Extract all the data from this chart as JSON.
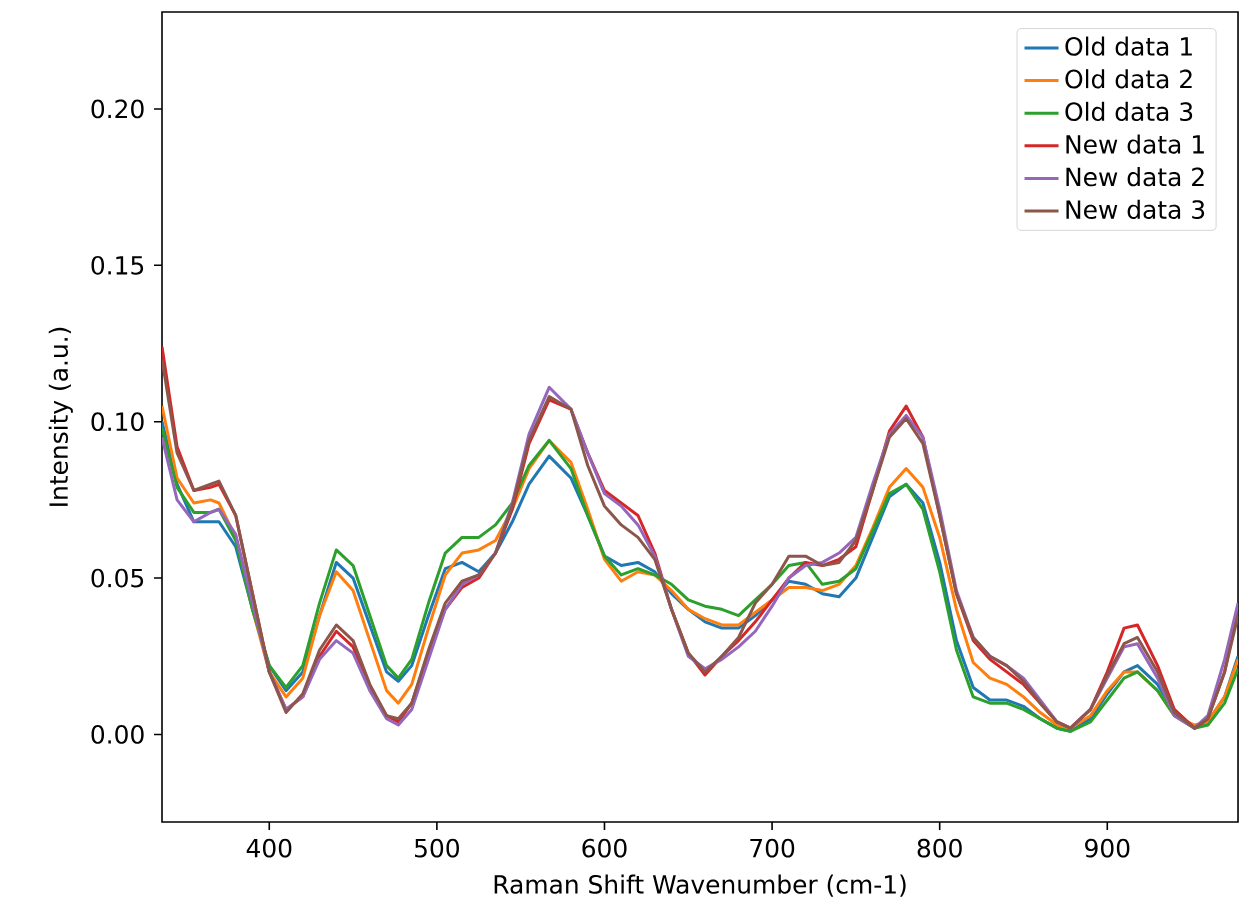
{
  "chart_data": {
    "type": "line",
    "xlabel": "Raman Shift Wavenumber (cm-1)",
    "ylabel": "Intensity (a.u.)",
    "x": [
      336,
      345,
      355,
      365,
      370,
      380,
      390,
      400,
      410,
      420,
      430,
      440,
      450,
      460,
      470,
      477,
      485,
      495,
      505,
      515,
      525,
      535,
      545,
      555,
      567,
      580,
      590,
      600,
      610,
      620,
      630,
      640,
      650,
      660,
      670,
      680,
      690,
      700,
      710,
      720,
      730,
      740,
      750,
      760,
      770,
      780,
      790,
      800,
      810,
      820,
      830,
      840,
      850,
      860,
      870,
      878,
      890,
      900,
      910,
      918,
      930,
      940,
      952,
      960,
      970,
      978
    ],
    "series": [
      {
        "name": "Old data 1",
        "color": "#1f77b4",
        "values": [
          0.1,
          0.08,
          0.068,
          0.068,
          0.068,
          0.06,
          0.04,
          0.022,
          0.014,
          0.02,
          0.038,
          0.055,
          0.05,
          0.035,
          0.02,
          0.017,
          0.022,
          0.038,
          0.053,
          0.055,
          0.052,
          0.058,
          0.068,
          0.08,
          0.089,
          0.082,
          0.07,
          0.057,
          0.054,
          0.055,
          0.052,
          0.045,
          0.04,
          0.036,
          0.034,
          0.034,
          0.038,
          0.043,
          0.049,
          0.048,
          0.045,
          0.044,
          0.05,
          0.063,
          0.076,
          0.08,
          0.074,
          0.055,
          0.03,
          0.015,
          0.011,
          0.011,
          0.009,
          0.005,
          0.002,
          0.001,
          0.005,
          0.013,
          0.02,
          0.022,
          0.016,
          0.007,
          0.002,
          0.004,
          0.012,
          0.025
        ]
      },
      {
        "name": "Old data 2",
        "color": "#ff7f0e",
        "values": [
          0.105,
          0.082,
          0.074,
          0.075,
          0.074,
          0.063,
          0.04,
          0.02,
          0.012,
          0.018,
          0.038,
          0.052,
          0.046,
          0.03,
          0.014,
          0.01,
          0.016,
          0.034,
          0.051,
          0.058,
          0.059,
          0.062,
          0.072,
          0.085,
          0.094,
          0.087,
          0.072,
          0.056,
          0.049,
          0.052,
          0.051,
          0.046,
          0.04,
          0.037,
          0.035,
          0.035,
          0.039,
          0.043,
          0.047,
          0.047,
          0.046,
          0.048,
          0.054,
          0.066,
          0.079,
          0.085,
          0.079,
          0.063,
          0.04,
          0.023,
          0.018,
          0.016,
          0.012,
          0.007,
          0.003,
          0.002,
          0.006,
          0.014,
          0.02,
          0.02,
          0.014,
          0.006,
          0.003,
          0.004,
          0.012,
          0.024
        ]
      },
      {
        "name": "Old data 3",
        "color": "#2ca02c",
        "values": [
          0.098,
          0.079,
          0.071,
          0.071,
          0.072,
          0.062,
          0.04,
          0.022,
          0.015,
          0.022,
          0.042,
          0.059,
          0.054,
          0.038,
          0.022,
          0.018,
          0.024,
          0.042,
          0.058,
          0.063,
          0.063,
          0.067,
          0.074,
          0.086,
          0.094,
          0.085,
          0.07,
          0.057,
          0.051,
          0.053,
          0.051,
          0.048,
          0.043,
          0.041,
          0.04,
          0.038,
          0.043,
          0.048,
          0.054,
          0.055,
          0.048,
          0.049,
          0.053,
          0.065,
          0.077,
          0.08,
          0.072,
          0.052,
          0.027,
          0.012,
          0.01,
          0.01,
          0.008,
          0.005,
          0.002,
          0.001,
          0.004,
          0.011,
          0.018,
          0.02,
          0.014,
          0.006,
          0.002,
          0.003,
          0.01,
          0.021
        ]
      },
      {
        "name": "New data 1",
        "color": "#d62728",
        "values": [
          0.124,
          0.092,
          0.078,
          0.079,
          0.08,
          0.07,
          0.045,
          0.02,
          0.008,
          0.012,
          0.025,
          0.033,
          0.028,
          0.015,
          0.006,
          0.004,
          0.01,
          0.026,
          0.04,
          0.047,
          0.05,
          0.058,
          0.072,
          0.093,
          0.107,
          0.104,
          0.09,
          0.078,
          0.074,
          0.07,
          0.058,
          0.04,
          0.026,
          0.019,
          0.025,
          0.03,
          0.036,
          0.043,
          0.05,
          0.055,
          0.054,
          0.056,
          0.06,
          0.078,
          0.097,
          0.105,
          0.095,
          0.07,
          0.045,
          0.03,
          0.024,
          0.02,
          0.016,
          0.01,
          0.004,
          0.002,
          0.008,
          0.02,
          0.034,
          0.035,
          0.022,
          0.008,
          0.002,
          0.005,
          0.02,
          0.04
        ]
      },
      {
        "name": "New data 2",
        "color": "#9467bd",
        "values": [
          0.095,
          0.075,
          0.068,
          0.071,
          0.072,
          0.064,
          0.042,
          0.02,
          0.008,
          0.012,
          0.024,
          0.03,
          0.026,
          0.014,
          0.005,
          0.003,
          0.008,
          0.024,
          0.04,
          0.048,
          0.051,
          0.058,
          0.074,
          0.096,
          0.111,
          0.104,
          0.09,
          0.077,
          0.073,
          0.067,
          0.057,
          0.04,
          0.025,
          0.021,
          0.024,
          0.028,
          0.033,
          0.041,
          0.05,
          0.054,
          0.055,
          0.058,
          0.063,
          0.08,
          0.096,
          0.102,
          0.095,
          0.072,
          0.046,
          0.031,
          0.025,
          0.022,
          0.018,
          0.011,
          0.004,
          0.002,
          0.008,
          0.018,
          0.028,
          0.029,
          0.018,
          0.006,
          0.002,
          0.006,
          0.024,
          0.042
        ]
      },
      {
        "name": "New data 3",
        "color": "#8c564b",
        "values": [
          0.12,
          0.09,
          0.078,
          0.08,
          0.081,
          0.07,
          0.045,
          0.02,
          0.007,
          0.013,
          0.027,
          0.035,
          0.03,
          0.016,
          0.006,
          0.005,
          0.01,
          0.027,
          0.042,
          0.049,
          0.051,
          0.058,
          0.073,
          0.094,
          0.108,
          0.104,
          0.086,
          0.073,
          0.067,
          0.063,
          0.056,
          0.04,
          0.026,
          0.02,
          0.025,
          0.031,
          0.042,
          0.048,
          0.057,
          0.057,
          0.054,
          0.055,
          0.062,
          0.078,
          0.095,
          0.101,
          0.093,
          0.07,
          0.045,
          0.031,
          0.025,
          0.022,
          0.017,
          0.01,
          0.004,
          0.002,
          0.008,
          0.019,
          0.029,
          0.031,
          0.02,
          0.007,
          0.002,
          0.005,
          0.02,
          0.038
        ]
      }
    ],
    "xlim": [
      336,
      978
    ],
    "ylim": [
      -0.028,
      0.231
    ],
    "xticks": [
      400,
      500,
      600,
      700,
      800,
      900
    ],
    "yticks": [
      {
        "value": 0,
        "label": "0.00"
      },
      {
        "value": 0.05,
        "label": "0.05"
      },
      {
        "value": 0.1,
        "label": "0.10"
      },
      {
        "value": 0.15,
        "label": "0.15"
      },
      {
        "value": 0.2,
        "label": "0.20"
      }
    ],
    "legend": "top right",
    "grid": false
  }
}
